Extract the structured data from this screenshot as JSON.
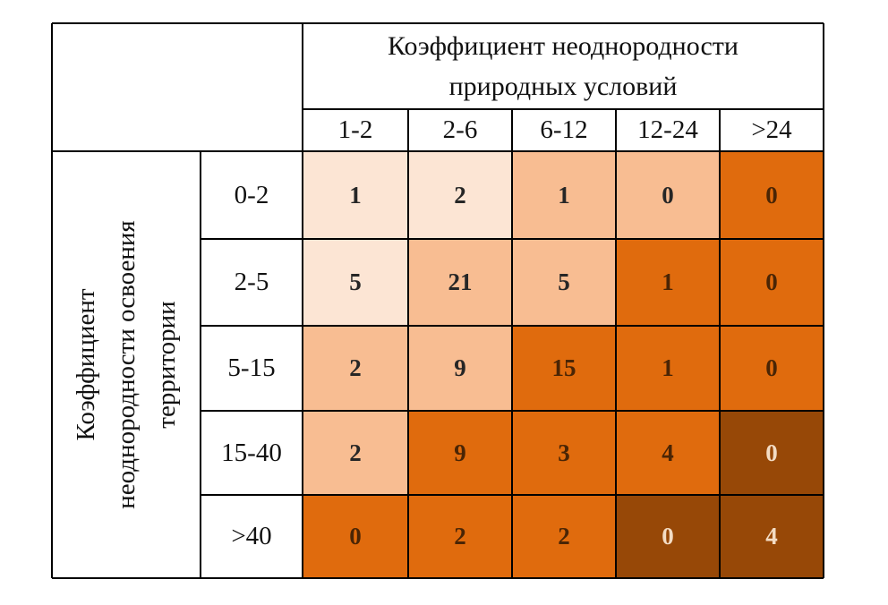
{
  "chart_data": {
    "type": "heatmap",
    "column_header": [
      "Коэффициент неоднородности",
      "природных условий"
    ],
    "row_header": [
      "Коэффициент",
      "неоднородности освоения",
      "территории"
    ],
    "columns": [
      "1-2",
      "2-6",
      "6-12",
      "12-24",
      ">24"
    ],
    "rows": [
      "0-2",
      "2-5",
      "5-15",
      "15-40",
      ">40"
    ],
    "values": [
      [
        1,
        2,
        1,
        0,
        0
      ],
      [
        5,
        21,
        5,
        1,
        0
      ],
      [
        2,
        9,
        15,
        1,
        0
      ],
      [
        2,
        9,
        3,
        4,
        0
      ],
      [
        0,
        2,
        2,
        0,
        4
      ]
    ],
    "levels": [
      [
        1,
        1,
        2,
        2,
        3
      ],
      [
        1,
        2,
        2,
        3,
        3
      ],
      [
        2,
        2,
        3,
        3,
        3
      ],
      [
        2,
        3,
        3,
        3,
        4
      ],
      [
        3,
        3,
        3,
        4,
        4
      ]
    ],
    "level_colors": {
      "1": "#fce5d4",
      "2": "#f8bd92",
      "3": "#e06b0d",
      "4": "#974807"
    }
  }
}
